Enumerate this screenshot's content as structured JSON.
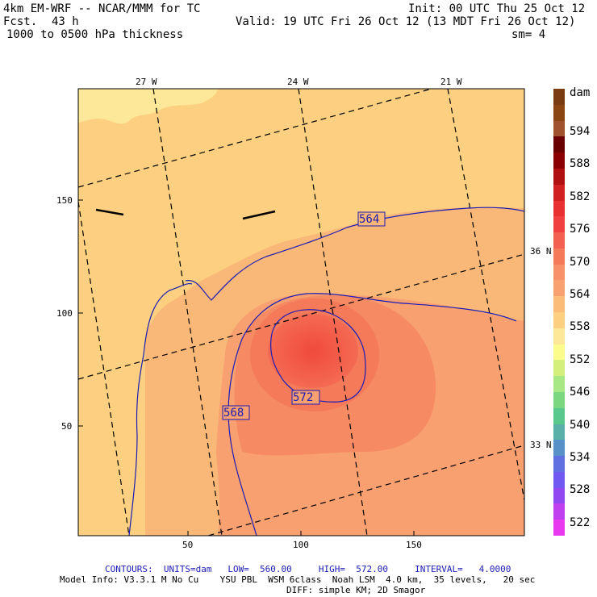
{
  "header": {
    "model_line": "4km EM-WRF -- NCAR/MMM for TC",
    "init_line": "Init: 00 UTC Thu 25 Oct 12",
    "fcst_label": "Fcst.",
    "fcst_value": "43 h",
    "valid_line": "Valid: 19 UTC Fri 26 Oct 12 (13 MDT Fri 26 Oct 12)",
    "field_line": "1000 to 0500 hPa thickness",
    "smooth_line": "sm= 4"
  },
  "map": {
    "lon_labels": [
      "27 W",
      "24 W",
      "21 W"
    ],
    "lat_labels": [
      "36 N",
      "33 N"
    ],
    "x_ticks": [
      "50",
      "100",
      "150"
    ],
    "y_ticks": [
      "150",
      "100",
      "50"
    ],
    "contour_labels": [
      "564",
      "572",
      "568"
    ]
  },
  "colorbar": {
    "unit": "dam",
    "levels": [
      "594",
      "588",
      "582",
      "576",
      "570",
      "564",
      "558",
      "552",
      "546",
      "540",
      "534",
      "528",
      "522"
    ],
    "colors": [
      "#7a3b10",
      "#8b4513",
      "#a0522d",
      "#6b0000",
      "#8b0000",
      "#b01010",
      "#d02020",
      "#e83030",
      "#f04040",
      "#f46050",
      "#f47a5a",
      "#f8906a",
      "#f8a070",
      "#fabc78",
      "#fcd080",
      "#fce898",
      "#fcfc8c",
      "#d4f07c",
      "#a8e884",
      "#7cd880",
      "#58c88c",
      "#58b0a8",
      "#5890c8",
      "#6070e0",
      "#7058f0",
      "#9048f0",
      "#c040f0",
      "#e838f0"
    ]
  },
  "footer": {
    "contours_line": "CONTOURS:  UNITS=dam   LOW=  560.00     HIGH=  572.00     INTERVAL=   4.0000",
    "model_info": "Model Info: V3.3.1 M No Cu    YSU PBL  WSM 6class  Noah LSM  4.0 km,  35 levels,   20 sec",
    "diff_line": "DIFF: simple KM; 2D Smagor"
  }
}
